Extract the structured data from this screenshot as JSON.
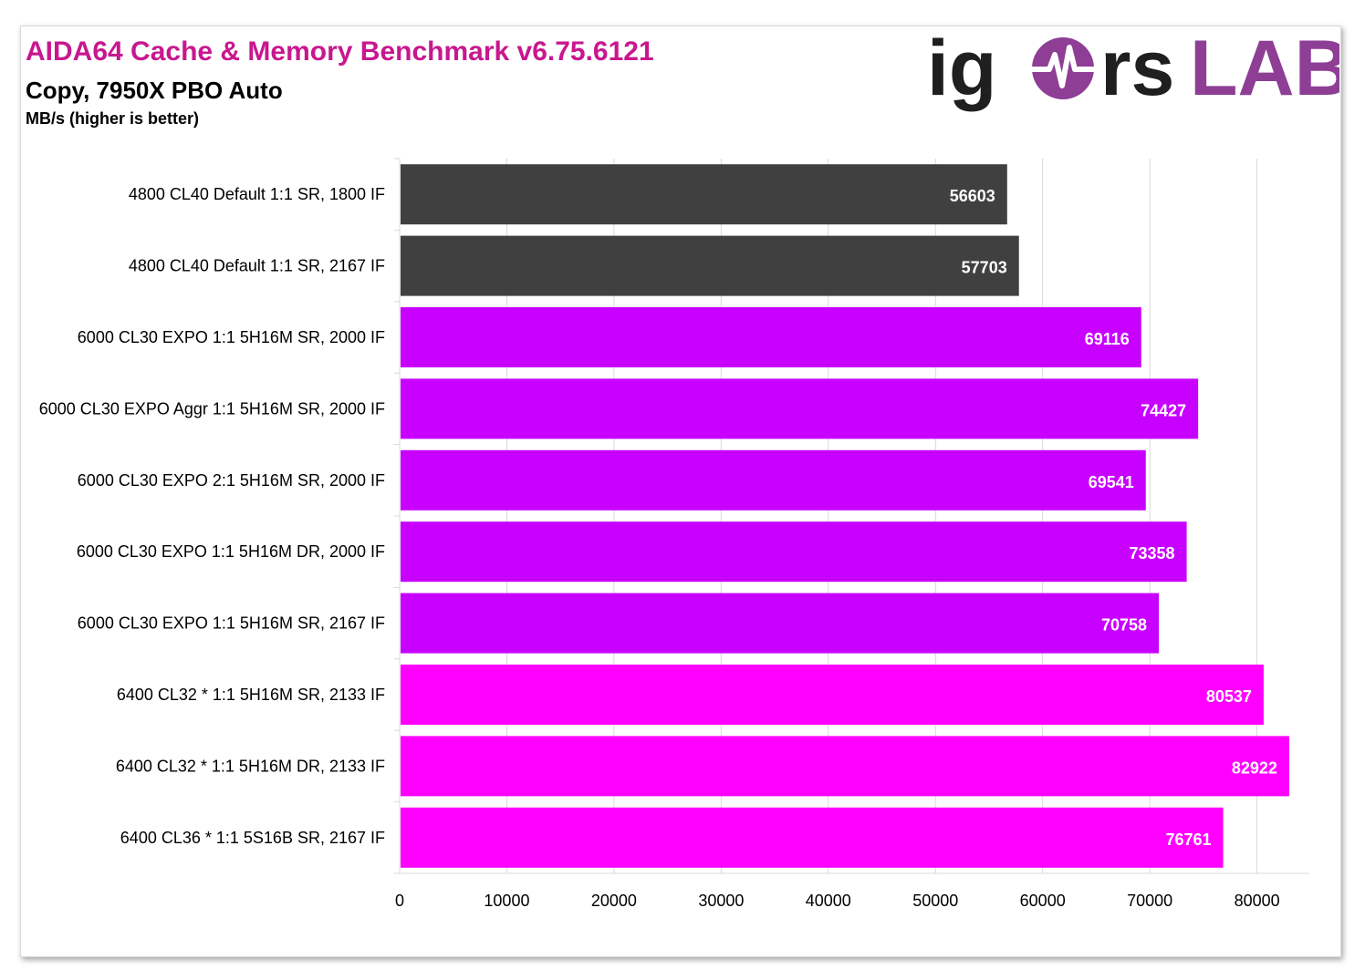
{
  "header": {
    "title": "AIDA64 Cache & Memory Benchmark v6.75.6121",
    "subtitle": "Copy, 7950X PBO Auto",
    "unit": "MB/s (higher is better)"
  },
  "logo": {
    "text_left": "ig",
    "text_mid": "rs",
    "text_right": "LAB",
    "color_dark": "#1f1f1f",
    "color_accent": "#8e3e95"
  },
  "chart_data": {
    "type": "bar",
    "orientation": "horizontal",
    "categories": [
      "4800 CL40 Default 1:1 SR, 1800 IF",
      "4800 CL40 Default 1:1 SR, 2167 IF",
      "6000 CL30 EXPO 1:1 5H16M SR, 2000 IF",
      "6000 CL30 EXPO Aggr 1:1 5H16M SR, 2000 IF",
      "6000 CL30 EXPO 2:1 5H16M SR, 2000 IF",
      "6000 CL30 EXPO 1:1 5H16M DR, 2000 IF",
      "6000 CL30 EXPO 1:1 5H16M SR, 2167 IF",
      "6400 CL32 * 1:1 5H16M SR, 2133 IF",
      "6400 CL32 * 1:1 5H16M DR, 2133 IF",
      "6400 CL36 * 1:1 5S16B SR, 2167 IF"
    ],
    "values": [
      56603,
      57703,
      69116,
      74427,
      69541,
      73358,
      70758,
      80537,
      82922,
      76761
    ],
    "colors": [
      "#404040",
      "#404040",
      "#c800ff",
      "#c800ff",
      "#c800ff",
      "#c800ff",
      "#c800ff",
      "#ff00ff",
      "#ff00ff",
      "#ff00ff"
    ],
    "xlim": [
      0,
      84000
    ],
    "xticks": [
      0,
      10000,
      20000,
      30000,
      40000,
      50000,
      60000,
      70000,
      80000
    ],
    "grid": "vertical",
    "legend": "none"
  }
}
